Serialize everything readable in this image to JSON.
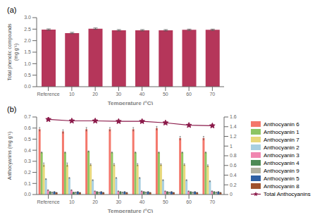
{
  "chart_data": [
    {
      "type": "bar",
      "title": "(a)",
      "categories": [
        "Reference",
        "10",
        "20",
        "30",
        "40",
        "50",
        "60",
        "70"
      ],
      "values": [
        2.48,
        2.33,
        2.52,
        2.45,
        2.45,
        2.45,
        2.47,
        2.47
      ],
      "errors": [
        0.03,
        0.03,
        0.03,
        0.03,
        0.03,
        0.03,
        0.03,
        0.03
      ],
      "color": "#b5365a",
      "xlabel": "Temperature (°C)",
      "ylabel": "Total phenolic compounds\n(mg g⁻¹)",
      "ylim": [
        0.0,
        3.0
      ],
      "yticks": [
        {
          "value": 0,
          "label": "0.0"
        },
        0.5,
        {
          "value": 1,
          "label": "1.0"
        },
        1.5,
        {
          "value": 2,
          "label": "2.0"
        },
        2.5,
        {
          "value": 3,
          "label": "3.0"
        }
      ],
      "grid": false
    },
    {
      "type": "bar",
      "title": "(b)",
      "categories": [
        "Reference",
        "10",
        "20",
        "30",
        "40",
        "50",
        "60",
        "70"
      ],
      "xlabel": "Temperature (°C)",
      "ylabel": "Anthocyanins (mg g⁻¹)",
      "ylim": [
        0.0,
        0.7
      ],
      "yticks": [
        {
          "value": 0,
          "label": "0.0"
        },
        0.1,
        0.2,
        0.3,
        0.4,
        0.5,
        0.6,
        0.7
      ],
      "y2lim": [
        0,
        1.6
      ],
      "y2ticks": [
        0,
        0.2,
        0.4,
        0.6,
        0.8,
        1,
        1.2,
        1.4,
        1.6
      ],
      "grid": false,
      "legend": "right",
      "series": [
        {
          "name": "Anthocyanin 6",
          "color": "#f4776b",
          "values": [
            0.59,
            0.57,
            0.59,
            0.59,
            0.59,
            0.6,
            0.51,
            0.51
          ],
          "errors": [
            0.015,
            0.015,
            0.015,
            0.015,
            0.015,
            0.015,
            0.015,
            0.015
          ]
        },
        {
          "name": "Anthocyanin 1",
          "color": "#8dc563",
          "values": [
            0.38,
            0.38,
            0.39,
            0.38,
            0.38,
            0.38,
            0.38,
            0.38
          ],
          "errors": [
            0.004,
            0.004,
            0.004,
            0.004,
            0.004,
            0.004,
            0.004,
            0.004
          ]
        },
        {
          "name": "Anthocyanin 7",
          "color": "#e8d87a",
          "values": [
            0.27,
            0.27,
            0.27,
            0.27,
            0.27,
            0.27,
            0.27,
            0.26
          ],
          "errors": [
            0.015,
            0.015,
            0.008,
            0.01,
            0.01,
            0.008,
            0.008,
            0.008
          ]
        },
        {
          "name": "Anthocyanin 2",
          "color": "#a8cfe0",
          "values": [
            0.14,
            0.15,
            0.13,
            0.15,
            0.15,
            0.13,
            0.13,
            0.12
          ],
          "errors": [
            0.004,
            0.004,
            0.004,
            0.004,
            0.004,
            0.004,
            0.004,
            0.004
          ]
        },
        {
          "name": "Anthocyanin 3",
          "color": "#f086b0",
          "values": [
            0.04,
            0.04,
            0.03,
            0.03,
            0.03,
            0.03,
            0.03,
            0.03
          ],
          "errors": [
            0.003,
            0.003,
            0.003,
            0.003,
            0.003,
            0.003,
            0.003,
            0.003
          ]
        },
        {
          "name": "Anthocyanin 4",
          "color": "#4d8a55",
          "values": [
            0.025,
            0.02,
            0.025,
            0.025,
            0.025,
            0.025,
            0.025,
            0.025
          ],
          "errors": [
            0.002,
            0.002,
            0.002,
            0.002,
            0.002,
            0.002,
            0.002,
            0.002
          ]
        },
        {
          "name": "Anthocyanin 9",
          "color": "#b0b0a0",
          "values": [
            0.02,
            0.02,
            0.02,
            0.02,
            0.02,
            0.02,
            0.02,
            0.02
          ],
          "errors": [
            0.001,
            0.001,
            0.001,
            0.001,
            0.001,
            0.001,
            0.001,
            0.001
          ]
        },
        {
          "name": "Anthocyanin 5",
          "color": "#2e5fa3",
          "values": [
            0.025,
            0.025,
            0.025,
            0.025,
            0.025,
            0.025,
            0.025,
            0.025
          ],
          "errors": [
            0.002,
            0.002,
            0.002,
            0.002,
            0.002,
            0.002,
            0.002,
            0.002
          ]
        },
        {
          "name": "Anthocyanin 8",
          "color": "#a0522d",
          "values": [
            0.018,
            0.018,
            0.018,
            0.018,
            0.018,
            0.018,
            0.018,
            0.018
          ],
          "errors": [
            0.001,
            0.001,
            0.001,
            0.001,
            0.001,
            0.001,
            0.001,
            0.001
          ]
        },
        {
          "name": "Total Anthocyanins",
          "type": "line",
          "color": "#8b1a4a",
          "marker": "star",
          "axis": "y2",
          "values": [
            1.55,
            1.52,
            1.52,
            1.51,
            1.51,
            1.48,
            1.43,
            1.42
          ]
        }
      ]
    }
  ]
}
